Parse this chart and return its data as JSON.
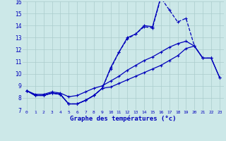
{
  "title": "Graphe des températures (°c)",
  "background_color": "#cce8e8",
  "grid_color": "#aacccc",
  "line_color": "#0000bb",
  "ylim": [
    7,
    16
  ],
  "xlim": [
    -0.5,
    23.5
  ],
  "yticks": [
    7,
    8,
    9,
    10,
    11,
    12,
    13,
    14,
    15,
    16
  ],
  "xticks": [
    0,
    1,
    2,
    3,
    4,
    5,
    6,
    7,
    8,
    9,
    10,
    11,
    12,
    13,
    14,
    15,
    16,
    17,
    18,
    19,
    20,
    21,
    22,
    23
  ],
  "xticklabels": [
    "0",
    "1",
    "2",
    "3",
    "4",
    "5",
    "6",
    "7",
    "8",
    "9",
    "10",
    "11",
    "12",
    "13",
    "14",
    "15",
    "16",
    "17",
    "18",
    "19",
    "20",
    "21",
    "22",
    "23"
  ],
  "line1_x": [
    0,
    1,
    2,
    3,
    4,
    5,
    6,
    7,
    8,
    9,
    10,
    11,
    12,
    13,
    14,
    15,
    16,
    17,
    18,
    19,
    20,
    21,
    22
  ],
  "line1_y": [
    8.6,
    8.2,
    8.2,
    8.4,
    8.3,
    7.5,
    7.5,
    7.8,
    8.2,
    8.8,
    10.4,
    11.8,
    12.9,
    13.3,
    13.9,
    13.8,
    16.3,
    15.3,
    14.3,
    14.6,
    12.3,
    11.3,
    11.3
  ],
  "line1_style": "--",
  "line2_x": [
    0,
    1,
    2,
    3,
    4,
    5,
    6,
    7,
    8,
    9,
    10,
    11,
    12,
    13,
    14,
    15,
    16,
    17,
    18,
    19,
    20,
    21,
    22,
    23
  ],
  "line2_y": [
    8.6,
    8.2,
    8.2,
    8.4,
    8.3,
    7.5,
    7.5,
    7.8,
    8.2,
    8.8,
    8.9,
    9.2,
    9.5,
    9.8,
    10.1,
    10.4,
    10.7,
    11.1,
    11.5,
    12.1,
    12.3,
    11.3,
    11.3,
    9.7
  ],
  "line2_style": "-",
  "line3_x": [
    0,
    1,
    2,
    3,
    4,
    5,
    6,
    7,
    8,
    9,
    10,
    11,
    12,
    13,
    14,
    15,
    16,
    17,
    18,
    19,
    20,
    21,
    22,
    23
  ],
  "line3_y": [
    8.6,
    8.3,
    8.3,
    8.5,
    8.4,
    8.1,
    8.2,
    8.5,
    8.8,
    9.0,
    9.4,
    9.8,
    10.3,
    10.7,
    11.1,
    11.4,
    11.8,
    12.2,
    12.5,
    12.7,
    12.3,
    11.3,
    11.3,
    9.7
  ],
  "line3_style": "-",
  "line4_x": [
    0,
    1,
    2,
    3,
    4,
    5,
    6,
    7,
    8,
    9,
    10,
    11,
    12,
    13,
    14,
    15,
    16
  ],
  "line4_y": [
    8.6,
    8.2,
    8.2,
    8.4,
    8.3,
    7.5,
    7.5,
    7.8,
    8.2,
    8.8,
    10.5,
    11.8,
    13.0,
    13.3,
    14.0,
    13.9,
    16.4
  ],
  "line4_style": "-"
}
